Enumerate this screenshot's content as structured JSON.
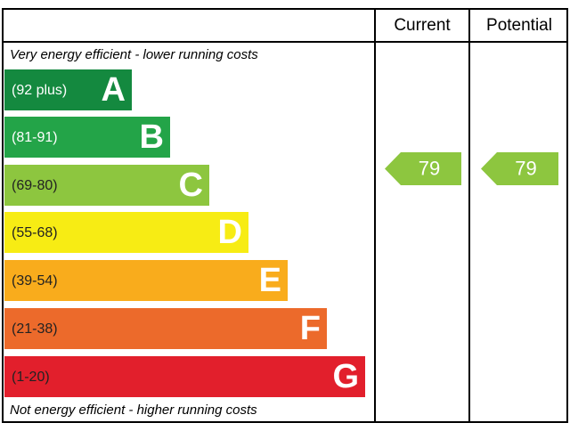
{
  "header": {
    "columns": [
      "Current",
      "Potential"
    ]
  },
  "top_note": "Very energy efficient - lower running costs",
  "bottom_note": "Not energy efficient - higher running costs",
  "bands": [
    {
      "range": "(92 plus)",
      "letter": "A",
      "color": "#14893f",
      "text_color": "#ffffff"
    },
    {
      "range": "(81-91)",
      "letter": "B",
      "color": "#23a448",
      "text_color": "#ffffff"
    },
    {
      "range": "(69-80)",
      "letter": "C",
      "color": "#8dc63f",
      "text_color": "#222222"
    },
    {
      "range": "(55-68)",
      "letter": "D",
      "color": "#f7ec14",
      "text_color": "#222222"
    },
    {
      "range": "(39-54)",
      "letter": "E",
      "color": "#f9ac1c",
      "text_color": "#222222"
    },
    {
      "range": "(21-38)",
      "letter": "F",
      "color": "#ec6a2b",
      "text_color": "#222222"
    },
    {
      "range": "(1-20)",
      "letter": "G",
      "color": "#e21f2c",
      "text_color": "#222222"
    }
  ],
  "ratings": {
    "current": "79",
    "potential": "79",
    "color": "#8dc63f"
  }
}
